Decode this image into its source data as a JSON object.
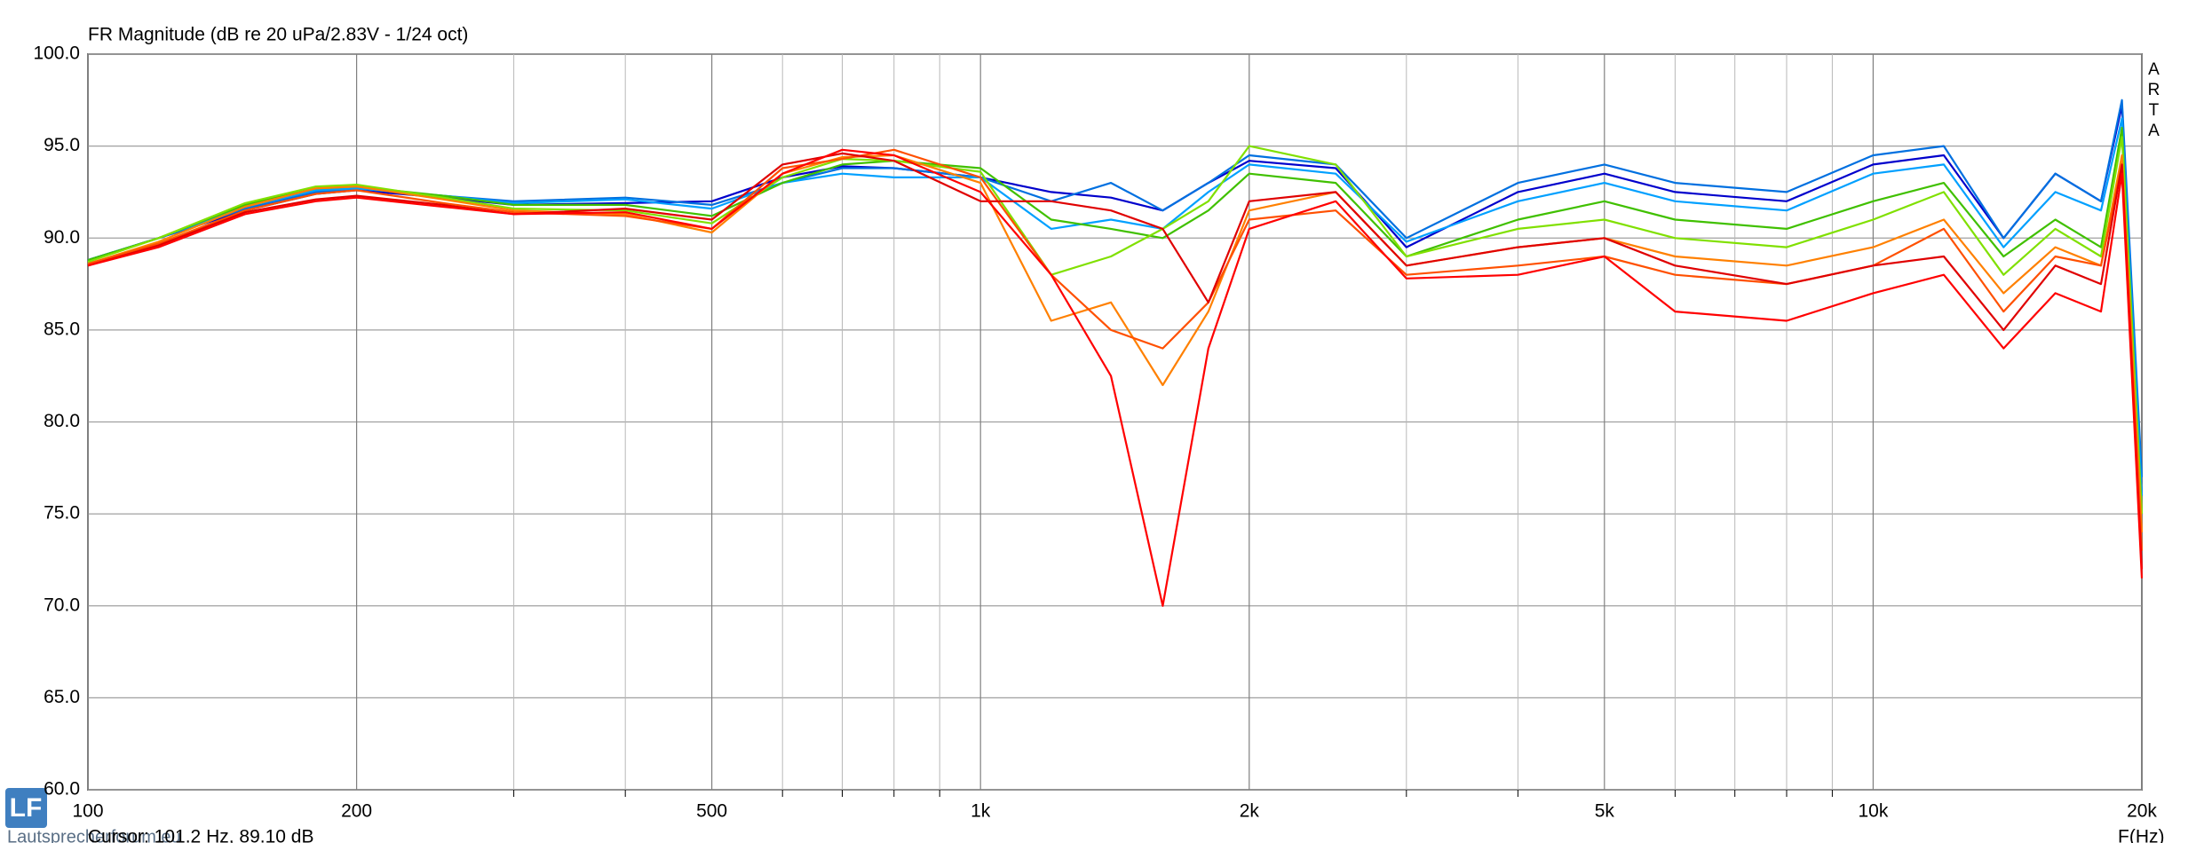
{
  "chart_data": {
    "type": "line",
    "title": "FR Magnitude (dB re 20 uPa/2.83V - 1/24 oct)",
    "side_label": "ARTA",
    "x_axis_label": "F(Hz)",
    "cursor": "Cursor: 101.2 Hz, 89.10 dB",
    "watermark": "Lautsprecherforum.eu",
    "logo": "LF",
    "log_x": true,
    "grid": true,
    "xlim": [
      100,
      20000
    ],
    "ylim": [
      60,
      100
    ],
    "xticks": [
      100,
      200,
      500,
      {
        "value": 1000,
        "label": "1k"
      },
      {
        "value": 2000,
        "label": "2k"
      },
      {
        "value": 5000,
        "label": "5k"
      },
      {
        "value": 10000,
        "label": "10k"
      },
      {
        "value": 20000,
        "label": "20k"
      }
    ],
    "xticks_minor": [
      300,
      400,
      600,
      700,
      800,
      900,
      3000,
      4000,
      6000,
      7000,
      8000,
      9000
    ],
    "yticks": [
      {
        "value": 60,
        "label": "60.0"
      },
      {
        "value": 65,
        "label": "65.0"
      },
      {
        "value": 70,
        "label": "70.0"
      },
      {
        "value": 75,
        "label": "75.0"
      },
      {
        "value": 80,
        "label": "80.0"
      },
      {
        "value": 85,
        "label": "85.0"
      },
      {
        "value": 90,
        "label": "90.0"
      },
      {
        "value": 95,
        "label": "95.0"
      },
      {
        "value": 100,
        "label": "100.0"
      }
    ],
    "x": [
      100,
      120,
      150,
      180,
      200,
      250,
      300,
      400,
      500,
      600,
      700,
      800,
      1000,
      1200,
      1400,
      1600,
      1800,
      2000,
      2500,
      3000,
      4000,
      5000,
      6000,
      8000,
      10000,
      12000,
      14000,
      16000,
      18000,
      19000,
      20000
    ],
    "series": [
      {
        "color": "#0000cc",
        "values": [
          88.8,
          90,
          91.5,
          92.4,
          92.6,
          92.2,
          91.8,
          91.9,
          92,
          93.3,
          93.9,
          93.8,
          93.3,
          92.5,
          92.2,
          91.5,
          93,
          94.2,
          93.8,
          89.5,
          92.5,
          93.5,
          92.5,
          92,
          94,
          94.5,
          90,
          93.5,
          92,
          97.2,
          76
        ]
      },
      {
        "color": "#0070e0",
        "values": [
          88.8,
          90,
          91.6,
          92.5,
          92.7,
          92.3,
          92,
          92.2,
          91.8,
          93,
          93.8,
          93.8,
          93.3,
          92,
          93,
          91.5,
          93,
          94.5,
          94,
          90,
          93,
          94,
          93,
          92.5,
          94.5,
          95,
          90,
          93.5,
          92,
          97.5,
          77
        ]
      },
      {
        "color": "#00a0ff",
        "values": [
          88.8,
          90,
          91.7,
          92.6,
          92.7,
          92.3,
          91.9,
          92.1,
          91.6,
          93,
          93.5,
          93.3,
          93.3,
          90.5,
          91,
          90.5,
          92.5,
          94,
          93.5,
          89.8,
          92,
          93,
          92,
          91.5,
          93.5,
          94,
          89.5,
          92.5,
          91.5,
          96.5,
          76
        ]
      },
      {
        "color": "#40c000",
        "values": [
          88.8,
          90,
          91.8,
          92.7,
          92.8,
          92.3,
          91.8,
          91.8,
          91.2,
          93,
          94,
          94.2,
          93.8,
          91,
          90.5,
          90,
          91.5,
          93.5,
          93,
          89,
          91,
          92,
          91,
          90.5,
          92,
          93,
          89,
          91,
          89.5,
          96,
          75
        ]
      },
      {
        "color": "#80e000",
        "values": [
          88.7,
          90,
          91.9,
          92.8,
          92.9,
          92.2,
          91.6,
          91.5,
          90.8,
          93.3,
          94.3,
          94.2,
          93.6,
          88,
          89,
          90.5,
          92,
          95,
          94,
          89,
          90.5,
          91,
          90,
          89.5,
          91,
          92.5,
          88,
          90.5,
          89,
          95.5,
          75
        ]
      },
      {
        "color": "#ff8000",
        "values": [
          88.6,
          89.8,
          91.7,
          92.7,
          92.8,
          92.1,
          91.5,
          91.3,
          90.3,
          93.5,
          94.4,
          94.5,
          93,
          85.5,
          86.5,
          82,
          86,
          91.5,
          92.5,
          88.5,
          89.5,
          90,
          89,
          88.5,
          89.5,
          91,
          87,
          89.5,
          88.5,
          94.5,
          74
        ]
      },
      {
        "color": "#ff5000",
        "values": [
          88.6,
          89.7,
          91.5,
          92.4,
          92.6,
          91.9,
          91.4,
          91.2,
          90.5,
          93.8,
          94.3,
          94.8,
          93.3,
          88,
          85,
          84,
          86.5,
          91,
          91.5,
          88,
          88.5,
          89,
          88,
          87.5,
          88.5,
          90.5,
          86,
          89,
          88.5,
          94,
          73
        ]
      },
      {
        "color": "#e00000",
        "values": [
          88.5,
          89.6,
          91.4,
          92.1,
          92.3,
          91.8,
          91.3,
          91.6,
          91,
          94,
          94.6,
          94.2,
          92,
          92,
          91.5,
          90.5,
          86.5,
          92,
          92.5,
          88.5,
          89.5,
          90,
          88.5,
          87.5,
          88.5,
          89,
          85,
          88.5,
          87.5,
          94,
          72
        ]
      },
      {
        "color": "#ff0000",
        "values": [
          88.5,
          89.5,
          91.3,
          92,
          92.2,
          91.7,
          91.3,
          91.4,
          90.5,
          93.5,
          94.8,
          94.5,
          92.5,
          88,
          82.5,
          70,
          84,
          90.5,
          92,
          87.8,
          88,
          89,
          86,
          85.5,
          87,
          88,
          84,
          87,
          86,
          93.5,
          71.5
        ]
      }
    ]
  }
}
